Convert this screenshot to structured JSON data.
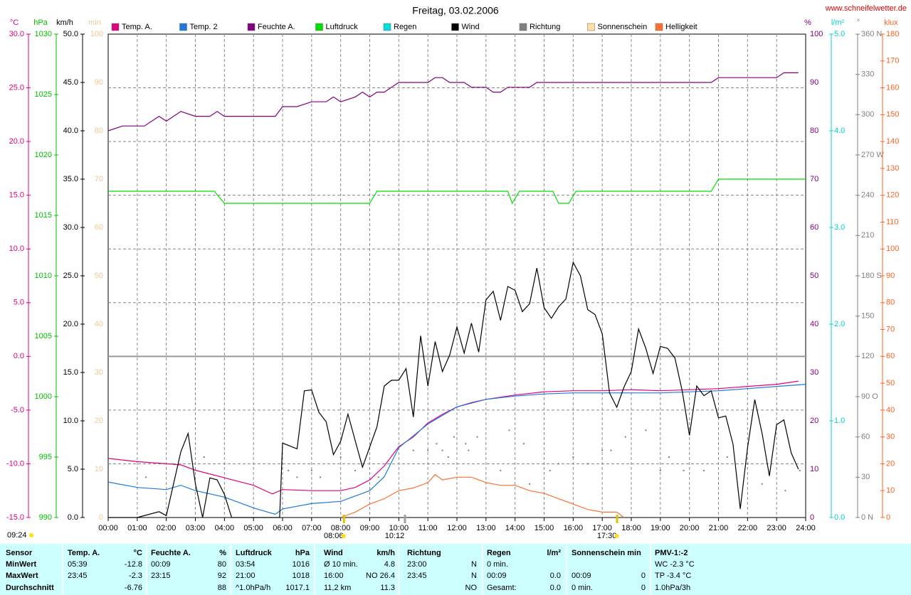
{
  "chart_data": {
    "type": "line",
    "title": "Freitag, 03.02.2006",
    "site": "www.schneifelwetter.de",
    "xlim": [
      0,
      24
    ],
    "xticks": [
      {
        "value": 0,
        "label": "00:00"
      },
      {
        "value": 1,
        "label": "01:00"
      },
      {
        "value": 2,
        "label": "02:00"
      },
      {
        "value": 3,
        "label": "03:00"
      },
      {
        "value": 4,
        "label": "04:00"
      },
      {
        "value": 5,
        "label": "05:00"
      },
      {
        "value": 6,
        "label": "06:00"
      },
      {
        "value": 7,
        "label": "07:00"
      },
      {
        "value": 8,
        "label": "08:00"
      },
      {
        "value": 9,
        "label": "09:00"
      },
      {
        "value": 10,
        "label": "10:00"
      },
      {
        "value": 11,
        "label": "11:00"
      },
      {
        "value": 12,
        "label": "12:00"
      },
      {
        "value": 13,
        "label": "13:00"
      },
      {
        "value": 14,
        "label": "14:00"
      },
      {
        "value": 15,
        "label": "15:00"
      },
      {
        "value": 16,
        "label": "16:00"
      },
      {
        "value": 17,
        "label": "17:00"
      },
      {
        "value": 18,
        "label": "18:00"
      },
      {
        "value": 19,
        "label": "19:00"
      },
      {
        "value": 20,
        "label": "20:00"
      },
      {
        "value": 21,
        "label": "21:00"
      },
      {
        "value": 22,
        "label": "22:00"
      },
      {
        "value": 23,
        "label": "23:00"
      },
      {
        "value": 24,
        "label": "24:00"
      }
    ],
    "grid": true,
    "axes": [
      {
        "label": "°C",
        "color": "#e0007f",
        "ylim": [
          -15,
          30
        ],
        "grid": true,
        "yticks": [
          {
            "value": -15,
            "label": "-15.0"
          },
          {
            "value": -10,
            "label": "-10.0"
          },
          {
            "value": -5,
            "label": "-5.0"
          },
          {
            "value": 0,
            "label": "0.0"
          },
          {
            "value": 5,
            "label": "5.0"
          },
          {
            "value": 10,
            "label": "10.0"
          },
          {
            "value": 15,
            "label": "15.0"
          },
          {
            "value": 20,
            "label": "20.0"
          },
          {
            "value": 25,
            "label": "25.0"
          },
          {
            "value": 30,
            "label": "30.0"
          }
        ]
      },
      {
        "label": "hPa",
        "color": "#00c000",
        "ylim": [
          990,
          1030
        ],
        "yticks": [
          990,
          995,
          1000,
          1005,
          1010,
          1015,
          1020,
          1025,
          1030
        ]
      },
      {
        "label": "km/h",
        "color": "#000000",
        "ylim": [
          0,
          50
        ],
        "yticks": [
          {
            "value": 0,
            "label": "0.0"
          },
          {
            "value": 5,
            "label": "5.0"
          },
          {
            "value": 10,
            "label": "10.0"
          },
          {
            "value": 15,
            "label": "15.0"
          },
          {
            "value": 20,
            "label": "20.0"
          },
          {
            "value": 25,
            "label": "25.0"
          },
          {
            "value": 30,
            "label": "30.0"
          },
          {
            "value": 35,
            "label": "35.0"
          },
          {
            "value": 40,
            "label": "40.0"
          },
          {
            "value": 45,
            "label": "45.0"
          },
          {
            "value": 50,
            "label": "50.0"
          }
        ]
      },
      {
        "label": "min",
        "color": "#f0c890",
        "ylim": [
          0,
          100
        ],
        "yticks": [
          0,
          10,
          20,
          30,
          40,
          50,
          60,
          70,
          80,
          90,
          100
        ]
      },
      {
        "label": "%",
        "color": "#800080",
        "ylim": [
          0,
          100
        ],
        "yticks": [
          0,
          10,
          20,
          30,
          40,
          50,
          60,
          70,
          80,
          90,
          100
        ]
      },
      {
        "label": "l/m²",
        "color": "#00d0d0",
        "ylim": [
          0,
          5
        ],
        "yticks": [
          {
            "value": 0,
            "label": "0.0"
          },
          {
            "value": 1,
            "label": "1.0"
          },
          {
            "value": 2,
            "label": "2.0"
          },
          {
            "value": 3,
            "label": "3.0"
          },
          {
            "value": 4,
            "label": "4.0"
          },
          {
            "value": 5,
            "label": "5.0"
          }
        ]
      },
      {
        "label": "°",
        "color": "#808080",
        "ylim": [
          0,
          360
        ],
        "yticks": [
          {
            "value": 0,
            "label": "0   N"
          },
          30,
          60,
          {
            "value": 90,
            "label": "90   O"
          },
          120,
          150,
          {
            "value": 180,
            "label": "180 S"
          },
          210,
          {
            "value": 240,
            "label": "240"
          },
          {
            "value": 270,
            "label": "270 W"
          },
          300,
          330,
          {
            "value": 360,
            "label": "360 N"
          }
        ]
      },
      {
        "label": "klux",
        "color": "#ff6020",
        "ylim": [
          0,
          180
        ],
        "yticks": [
          0,
          10,
          20,
          30,
          40,
          50,
          60,
          70,
          80,
          90,
          100,
          110,
          120,
          130,
          140,
          150,
          160,
          170,
          180
        ]
      }
    ],
    "series": [
      {
        "name": "Temp. A.",
        "color": "#e0007f",
        "axis": 0,
        "x": [
          0,
          1,
          2,
          2.5,
          3,
          4,
          5,
          5.65,
          6,
          7,
          8,
          8.5,
          9,
          9.5,
          10,
          10.5,
          11,
          11.5,
          12,
          12.5,
          13,
          14,
          15,
          16,
          17,
          18,
          19,
          20,
          21,
          22,
          23,
          23.75
        ],
        "values": [
          -9.5,
          -9.8,
          -10.0,
          -10.1,
          -10.6,
          -11.3,
          -12.0,
          -12.8,
          -12.4,
          -12.5,
          -12.5,
          -12.2,
          -11.5,
          -10.2,
          -8.4,
          -7.5,
          -6.2,
          -5.4,
          -4.7,
          -4.3,
          -4.0,
          -3.6,
          -3.3,
          -3.2,
          -3.2,
          -3.1,
          -3.2,
          -3.1,
          -3.0,
          -2.8,
          -2.6,
          -2.3
        ]
      },
      {
        "name": "Temp. 2",
        "color": "#1e78e0",
        "axis": 0,
        "x": [
          0,
          1,
          2,
          2.5,
          3,
          4,
          5,
          5.75,
          6,
          7,
          8,
          9,
          9.5,
          10,
          11,
          12,
          13,
          14,
          15,
          16,
          17,
          18,
          19,
          20,
          21,
          22,
          23,
          24
        ],
        "values": [
          -11.7,
          -12.2,
          -12.4,
          -12.0,
          -12.5,
          -13.1,
          -14.1,
          -14.7,
          -14.2,
          -13.7,
          -13.5,
          -12.5,
          -11.2,
          -8.5,
          -6.3,
          -4.7,
          -4.0,
          -3.7,
          -3.5,
          -3.4,
          -3.4,
          -3.4,
          -3.4,
          -3.3,
          -3.2,
          -3.0,
          -2.8,
          -2.6
        ]
      },
      {
        "name": "Feuchte A.",
        "color": "#800080",
        "axis": 4,
        "x": [
          0,
          0.5,
          1.25,
          1.75,
          2,
          2.5,
          3,
          3.5,
          3.75,
          4,
          5.75,
          6,
          6.5,
          7,
          7.5,
          7.75,
          8,
          8.5,
          8.75,
          9,
          9.25,
          9.5,
          9.75,
          10,
          11,
          11.25,
          11.5,
          11.75,
          12.25,
          12.5,
          13,
          13.25,
          13.5,
          13.75,
          14.5,
          14.75,
          20.75,
          21,
          23,
          23.25,
          23.75
        ],
        "values": [
          80,
          81,
          81,
          83,
          82,
          84,
          83,
          83,
          84,
          83,
          83,
          85,
          85,
          86,
          86,
          87,
          86,
          87,
          88,
          87,
          88,
          88,
          89,
          90,
          90,
          91,
          91,
          90,
          90,
          89,
          89,
          88,
          88,
          89,
          89,
          90,
          90,
          91,
          91,
          92,
          92
        ]
      },
      {
        "name": "Luftdruck",
        "color": "#00e000",
        "axis": 1,
        "x": [
          0,
          3.65,
          4,
          9,
          9.25,
          13.75,
          13.9,
          14.15,
          15.3,
          15.5,
          15.85,
          16.1,
          20.75,
          21,
          24
        ],
        "values": [
          1017,
          1017,
          1016,
          1016,
          1017,
          1017,
          1016,
          1017,
          1017,
          1016,
          1016,
          1017,
          1017,
          1018,
          1018
        ]
      },
      {
        "name": "Regen",
        "color": "#00e0e0",
        "axis": 5
      },
      {
        "name": "Wind",
        "color": "#000000",
        "axis": 2,
        "x": [
          0,
          1,
          1.75,
          2,
          2.5,
          2.75,
          3,
          3.25,
          3.5,
          3.75,
          4,
          4.25,
          5.9,
          6,
          6.5,
          6.75,
          7,
          7.25,
          7.5,
          7.75,
          8,
          8.25,
          8.75,
          9.25,
          9.5,
          9.75,
          10,
          10.25,
          10.5,
          10.75,
          11,
          11.25,
          11.5,
          11.75,
          12,
          12.25,
          12.5,
          12.75,
          13,
          13.25,
          13.5,
          13.75,
          14,
          14.25,
          14.5,
          14.75,
          15,
          15.25,
          15.5,
          15.75,
          16,
          16.25,
          16.5,
          16.75,
          17,
          17.25,
          17.5,
          17.75,
          18,
          18.25,
          18.5,
          18.75,
          19,
          19.25,
          19.5,
          19.75,
          20,
          20.25,
          20.5,
          20.75,
          21,
          21.25,
          21.5,
          21.75,
          22,
          22.25,
          22.5,
          22.75,
          23,
          23.25,
          23.5,
          23.75
        ],
        "values": [
          0,
          0,
          0.6,
          0.2,
          6.8,
          8.7,
          3.5,
          0,
          4.1,
          3.9,
          2.4,
          0,
          0,
          7.7,
          7.1,
          13.1,
          13.2,
          10.9,
          9.9,
          6.5,
          7.9,
          10.7,
          5.2,
          9.4,
          13.6,
          14.2,
          14.2,
          15.4,
          10.4,
          18.8,
          13.6,
          18.2,
          15.1,
          16.8,
          19.7,
          17.0,
          20.1,
          17.1,
          22.5,
          23.4,
          20.4,
          23.9,
          23.5,
          21.3,
          22.1,
          25.8,
          21.7,
          20.6,
          21.8,
          22.6,
          26.4,
          25.0,
          21.5,
          21.0,
          19.0,
          12.9,
          11.4,
          13.5,
          15.1,
          19.5,
          17.5,
          14.9,
          17.7,
          17.5,
          16.5,
          13.1,
          8.5,
          13.6,
          12.6,
          13.1,
          10.3,
          10.5,
          7.6,
          0.9,
          7.2,
          12.2,
          8.7,
          4.3,
          9.6,
          10.1,
          6.7,
          5.0
        ]
      },
      {
        "name": "Richtung",
        "color": "#808080",
        "axis": 6,
        "style": "dots",
        "x": [
          1.3,
          2.2,
          3.3,
          6.2,
          6.5,
          7.0,
          7.3,
          8.0,
          8.5,
          9.3,
          10.5,
          11.0,
          11.3,
          11.5,
          11.7,
          11.9,
          12.3,
          12.4,
          12.7,
          13.5,
          13.8,
          14.3,
          14.5,
          15.2,
          15.5,
          16.0,
          16.5,
          17.0,
          17.3,
          17.8,
          18.5,
          19.0,
          19.3,
          19.8,
          20.5,
          21.3,
          22.0,
          22.5,
          23.3,
          23.8
        ],
        "values": [
          30,
          40,
          45,
          35,
          30,
          35,
          30,
          45,
          35,
          30,
          50,
          50,
          55,
          50,
          45,
          60,
          55,
          50,
          60,
          35,
          65,
          55,
          25,
          35,
          40,
          45,
          40,
          50,
          50,
          60,
          65,
          35,
          45,
          35,
          35,
          45,
          40,
          25,
          20,
          35
        ]
      },
      {
        "name": "Sonnenschein",
        "color": "#ffe0a0",
        "axis": 3
      },
      {
        "name": "Helligkeit",
        "color": "#ff7030",
        "axis": 7,
        "x": [
          8,
          8.5,
          9,
          9.5,
          10,
          10.5,
          11,
          11.25,
          11.5,
          12,
          12.5,
          12.75,
          13,
          13.5,
          14,
          14.5,
          15,
          15.5,
          16,
          16.5,
          17,
          17.5,
          17.75
        ],
        "values": [
          0,
          2,
          5,
          7,
          10,
          11,
          13,
          16,
          14,
          15,
          15,
          14,
          13,
          12,
          12,
          10,
          9,
          7,
          5,
          3,
          2,
          2,
          0
        ]
      }
    ],
    "annotations": [
      {
        "x": 8.1,
        "label": "08:06"
      },
      {
        "x": 10.2,
        "label": "10:12"
      },
      {
        "x": 17.5,
        "label": "17:30"
      }
    ],
    "footer_time": "09:24"
  },
  "table": {
    "header": [
      {
        "left": "Sensor"
      },
      {
        "left": "Temp. A.",
        "right": "°C"
      },
      {
        "left": "Feuchte A.",
        "right": "%"
      },
      {
        "left": "Luftdruck",
        "right": "hPa"
      },
      {
        "left": "Wind",
        "right": "km/h"
      },
      {
        "left": "Richtung"
      },
      {
        "left": "Regen",
        "right": "l/m²"
      },
      {
        "left": "Sonnenschein min"
      },
      {
        "left": "PMV-1:-2"
      }
    ],
    "rows": [
      [
        {
          "left": "MinWert"
        },
        {
          "left": "05:39",
          "right": "-12.8"
        },
        {
          "left": "00:09",
          "right": "80"
        },
        {
          "left": "03:54",
          "right": "1016"
        },
        {
          "left": "Ø 10 min.",
          "right": "4.8"
        },
        {
          "left": "23:00",
          "right": "N"
        },
        {
          "left": "0 min."
        },
        {},
        {
          "left": "WC -2.3 °C"
        }
      ],
      [
        {
          "left": "MaxWert"
        },
        {
          "left": "23:45",
          "right": "-2.3"
        },
        {
          "left": "23:15",
          "right": "92"
        },
        {
          "left": "21:00",
          "right": "1018"
        },
        {
          "left": "16:00",
          "right": "NO 26.4"
        },
        {
          "left": "23:45",
          "right": "N"
        },
        {
          "left": "00:09",
          "right": "0.0"
        },
        {
          "left": "00:09",
          "right": "0"
        },
        {
          "left": "TP -3.4 °C"
        }
      ],
      [
        {
          "left": "Durchschnitt"
        },
        {
          "right": "-6.76"
        },
        {
          "right": "88"
        },
        {
          "left": "^1.0hPa/h",
          "right": "1017.1"
        },
        {
          "left": "11,2 km",
          "right": "11.3"
        },
        {
          "right": "NO"
        },
        {
          "left": "Gesamt:",
          "right": "0.0"
        },
        {
          "left": "0 min.",
          "right": "0"
        },
        {
          "left": "1.0hPa/3h"
        }
      ]
    ]
  }
}
